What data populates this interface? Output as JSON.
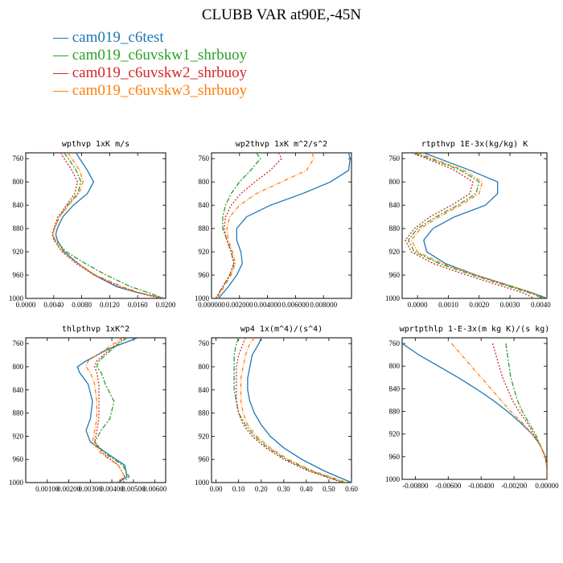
{
  "title": "CLUBB VAR at90E,-45N",
  "legend": [
    {
      "label": "cam019_c6test",
      "color": "#1f77b4",
      "dash": ""
    },
    {
      "label": "cam019_c6uvskw1_shrbuoy",
      "color": "#2ca02c",
      "dash": "6,2,2,2"
    },
    {
      "label": "cam019_c6uvskw2_shrbuoy",
      "color": "#d62728",
      "dash": "2,2"
    },
    {
      "label": "cam019_c6uvskw3_shrbuoy",
      "color": "#ff7f0e",
      "dash": "5,2,1,2"
    }
  ],
  "chart_data": [
    {
      "type": "line",
      "title": "wpthvp  1xK m/s",
      "xlim": [
        0,
        0.02
      ],
      "ylim": [
        1000,
        750
      ],
      "xticks": [
        0,
        0.004,
        0.008,
        0.012,
        0.016,
        0.02
      ],
      "xticklabels": [
        "0.0000",
        "0.0040",
        "0.0080",
        "0.0120",
        "0.0160",
        "0.0200"
      ],
      "yticks": [
        760,
        800,
        840,
        880,
        920,
        960,
        1000
      ],
      "series": [
        {
          "y": [
            750,
            760,
            780,
            800,
            820,
            840,
            860,
            880,
            890,
            900,
            920,
            940,
            960,
            980,
            990,
            1000
          ],
          "x": [
            0.0072,
            0.0077,
            0.0088,
            0.0097,
            0.0088,
            0.0068,
            0.0053,
            0.0045,
            0.0043,
            0.0045,
            0.0055,
            0.0075,
            0.0098,
            0.013,
            0.016,
            0.0198
          ]
        },
        {
          "y": [
            750,
            760,
            780,
            800,
            820,
            840,
            860,
            880,
            890,
            900,
            920,
            940,
            960,
            980,
            990,
            1000
          ],
          "x": [
            0.0055,
            0.0061,
            0.0072,
            0.0079,
            0.0074,
            0.006,
            0.0048,
            0.0041,
            0.0039,
            0.0042,
            0.0058,
            0.0085,
            0.0115,
            0.015,
            0.0175,
            0.0198
          ]
        },
        {
          "y": [
            750,
            760,
            780,
            800,
            820,
            840,
            860,
            880,
            890,
            900,
            920,
            940,
            960,
            980,
            990,
            1000
          ],
          "x": [
            0.005,
            0.0055,
            0.0066,
            0.0074,
            0.007,
            0.0058,
            0.0046,
            0.004,
            0.0038,
            0.004,
            0.0052,
            0.0072,
            0.0098,
            0.0135,
            0.016,
            0.0192
          ]
        },
        {
          "y": [
            750,
            760,
            780,
            800,
            820,
            840,
            860,
            880,
            890,
            900,
            920,
            940,
            960,
            980,
            990,
            1000
          ],
          "x": [
            0.006,
            0.0066,
            0.0077,
            0.0082,
            0.0076,
            0.0061,
            0.0048,
            0.0041,
            0.0039,
            0.0041,
            0.0053,
            0.0074,
            0.01,
            0.0138,
            0.0163,
            0.0195
          ]
        }
      ]
    },
    {
      "type": "line",
      "title": "wp2thvp  1xK m^2/s^2",
      "xlim": [
        0,
        0.01
      ],
      "ylim": [
        1000,
        750
      ],
      "xticks": [
        0,
        0.002,
        0.004,
        0.006,
        0.008
      ],
      "xticklabels": [
        "0.000000",
        "0.002000",
        "0.004000",
        "0.006000",
        "0.008000"
      ],
      "yticks": [
        760,
        800,
        840,
        880,
        920,
        960,
        1000
      ],
      "series": [
        {
          "y": [
            750,
            760,
            780,
            800,
            820,
            840,
            860,
            880,
            900,
            920,
            940,
            960,
            980,
            1000
          ],
          "x": [
            0.0098,
            0.0099,
            0.0098,
            0.0085,
            0.0065,
            0.0042,
            0.0025,
            0.0018,
            0.0018,
            0.0021,
            0.0022,
            0.0018,
            0.0012,
            0.0005
          ]
        },
        {
          "y": [
            750,
            760,
            780,
            800,
            820,
            840,
            860,
            880,
            900,
            920,
            940,
            960,
            980,
            1000
          ],
          "x": [
            0.0032,
            0.0035,
            0.0028,
            0.002,
            0.0014,
            0.001,
            0.0008,
            0.0008,
            0.0011,
            0.0014,
            0.0016,
            0.0013,
            0.0008,
            0.0003
          ]
        },
        {
          "y": [
            750,
            760,
            780,
            800,
            820,
            840,
            860,
            880,
            900,
            920,
            940,
            960,
            980,
            1000
          ],
          "x": [
            0.0048,
            0.005,
            0.0042,
            0.0031,
            0.0021,
            0.0014,
            0.001,
            0.0009,
            0.0011,
            0.0014,
            0.0016,
            0.0013,
            0.0008,
            0.0003
          ]
        },
        {
          "y": [
            750,
            760,
            780,
            800,
            820,
            840,
            860,
            880,
            900,
            920,
            940,
            960,
            980,
            1000
          ],
          "x": [
            0.0072,
            0.0073,
            0.0068,
            0.005,
            0.0032,
            0.002,
            0.0013,
            0.0011,
            0.0012,
            0.0015,
            0.0017,
            0.0014,
            0.0009,
            0.0004
          ]
        }
      ]
    },
    {
      "type": "line",
      "title": "rtpthvp  1E-3x(kg/kg) K",
      "xlim": [
        -0.0005,
        0.0042
      ],
      "ylim": [
        1000,
        750
      ],
      "xticks": [
        0,
        0.001,
        0.002,
        0.003,
        0.004
      ],
      "xticklabels": [
        "0.0000",
        "0.0010",
        "0.0020",
        "0.0030",
        "0.0040"
      ],
      "yticks": [
        760,
        800,
        840,
        880,
        920,
        960,
        1000
      ],
      "series": [
        {
          "y": [
            750,
            760,
            780,
            800,
            820,
            840,
            860,
            880,
            900,
            920,
            940,
            960,
            980,
            990,
            1000
          ],
          "x": [
            0.0002,
            0.0007,
            0.0017,
            0.0026,
            0.0026,
            0.0022,
            0.0012,
            0.0005,
            0.0002,
            0.0003,
            0.0009,
            0.0019,
            0.0031,
            0.0037,
            0.0042
          ]
        },
        {
          "y": [
            750,
            760,
            780,
            800,
            820,
            840,
            860,
            880,
            900,
            920,
            940,
            960,
            980,
            990,
            1000
          ],
          "x": [
            -0.0001,
            0.0004,
            0.0014,
            0.002,
            0.0019,
            0.0013,
            0.0006,
            0.0,
            -0.0003,
            -0.0001,
            0.0007,
            0.0018,
            0.003,
            0.0036,
            0.0041
          ]
        },
        {
          "y": [
            750,
            760,
            780,
            800,
            820,
            840,
            860,
            880,
            900,
            920,
            940,
            960,
            980,
            990,
            1000
          ],
          "x": [
            -0.0002,
            0.0003,
            0.0012,
            0.0018,
            0.0017,
            0.0011,
            0.0004,
            -0.0001,
            -0.0004,
            -0.0002,
            0.0005,
            0.0016,
            0.0028,
            0.0034,
            0.0038
          ]
        },
        {
          "y": [
            750,
            760,
            780,
            800,
            820,
            840,
            860,
            880,
            900,
            920,
            940,
            960,
            980,
            990,
            1000
          ],
          "x": [
            0.0,
            0.0005,
            0.0015,
            0.0021,
            0.002,
            0.0014,
            0.0007,
            0.0001,
            -0.0002,
            0.0,
            0.0008,
            0.0019,
            0.0031,
            0.0037,
            0.0041
          ]
        }
      ]
    },
    {
      "type": "line",
      "title": "thlpthvp  1xK^2",
      "xlim": [
        0,
        0.0065
      ],
      "ylim": [
        1000,
        750
      ],
      "xticks": [
        0.001,
        0.002,
        0.003,
        0.004,
        0.005,
        0.006
      ],
      "xticklabels": [
        "0.00100",
        "0.00200",
        "0.00300",
        "0.00400",
        "0.00500",
        "0.00600"
      ],
      "yticks": [
        760,
        800,
        840,
        880,
        920,
        960,
        1000
      ],
      "series": [
        {
          "y": [
            750,
            770,
            790,
            800,
            810,
            830,
            860,
            890,
            910,
            930,
            950,
            970,
            990,
            1000
          ],
          "x": [
            0.0052,
            0.0038,
            0.0028,
            0.0024,
            0.0025,
            0.0029,
            0.0031,
            0.003,
            0.0028,
            0.003,
            0.0038,
            0.0046,
            0.0047,
            0.0043
          ]
        },
        {
          "y": [
            750,
            770,
            790,
            800,
            810,
            830,
            860,
            890,
            910,
            930,
            950,
            970,
            990,
            1000
          ],
          "x": [
            0.0047,
            0.004,
            0.0034,
            0.0033,
            0.0035,
            0.0037,
            0.0041,
            0.0039,
            0.0035,
            0.0032,
            0.0037,
            0.0045,
            0.0048,
            0.0045
          ]
        },
        {
          "y": [
            750,
            770,
            790,
            800,
            810,
            830,
            860,
            890,
            910,
            930,
            950,
            970,
            990,
            1000
          ],
          "x": [
            0.0046,
            0.0039,
            0.0033,
            0.0032,
            0.0033,
            0.0034,
            0.0034,
            0.0034,
            0.0033,
            0.0032,
            0.0036,
            0.0043,
            0.0046,
            0.0043
          ]
        },
        {
          "y": [
            750,
            770,
            790,
            800,
            810,
            830,
            860,
            890,
            910,
            930,
            950,
            970,
            990,
            1000
          ],
          "x": [
            0.0045,
            0.0037,
            0.0029,
            0.0028,
            0.003,
            0.0032,
            0.0033,
            0.0033,
            0.0032,
            0.0031,
            0.0035,
            0.0043,
            0.0046,
            0.0042
          ]
        }
      ]
    },
    {
      "type": "line",
      "title": "wp4  1x(m^4)/(s^4)",
      "xlim": [
        -0.02,
        0.6
      ],
      "ylim": [
        1000,
        750
      ],
      "xticks": [
        0,
        0.1,
        0.2,
        0.3,
        0.4,
        0.5,
        0.6
      ],
      "xticklabels": [
        "0.00",
        "0.10",
        "0.20",
        "0.30",
        "0.40",
        "0.50",
        "0.60"
      ],
      "yticks": [
        760,
        800,
        840,
        880,
        920,
        960,
        1000
      ],
      "series": [
        {
          "y": [
            750,
            760,
            780,
            800,
            820,
            840,
            860,
            880,
            900,
            920,
            940,
            960,
            980,
            1000
          ],
          "x": [
            0.2,
            0.19,
            0.16,
            0.15,
            0.14,
            0.14,
            0.15,
            0.17,
            0.2,
            0.24,
            0.3,
            0.38,
            0.48,
            0.6
          ]
        },
        {
          "y": [
            750,
            760,
            780,
            800,
            820,
            840,
            860,
            880,
            900,
            920,
            940,
            960,
            980,
            1000
          ],
          "x": [
            0.1,
            0.09,
            0.08,
            0.08,
            0.08,
            0.08,
            0.09,
            0.1,
            0.13,
            0.17,
            0.23,
            0.31,
            0.42,
            0.57
          ]
        },
        {
          "y": [
            750,
            760,
            780,
            800,
            820,
            840,
            860,
            880,
            900,
            920,
            940,
            960,
            980,
            1000
          ],
          "x": [
            0.13,
            0.12,
            0.1,
            0.09,
            0.09,
            0.09,
            0.09,
            0.1,
            0.12,
            0.16,
            0.22,
            0.3,
            0.41,
            0.56
          ]
        },
        {
          "y": [
            750,
            760,
            780,
            800,
            820,
            840,
            860,
            880,
            900,
            920,
            940,
            960,
            980,
            1000
          ],
          "x": [
            0.17,
            0.15,
            0.13,
            0.12,
            0.11,
            0.11,
            0.11,
            0.12,
            0.14,
            0.18,
            0.24,
            0.32,
            0.43,
            0.58
          ]
        }
      ]
    },
    {
      "type": "line",
      "title": "wprtpthlp  1-E-3x(m kg K)/(s kg)",
      "xlim": [
        -0.0088,
        0.0
      ],
      "ylim": [
        1000,
        750
      ],
      "xticks": [
        -0.008,
        -0.006,
        -0.004,
        -0.002,
        0.0
      ],
      "xticklabels": [
        "-0.00800",
        "-0.00600",
        "-0.00400",
        "-0.00200",
        "0.00000"
      ],
      "yticks": [
        760,
        800,
        840,
        880,
        920,
        960,
        1000
      ],
      "series": [
        {
          "y": [
            760,
            780,
            800,
            820,
            840,
            860,
            880,
            900,
            920,
            940,
            960,
            980,
            1000
          ],
          "x": [
            -0.0088,
            -0.0078,
            -0.0066,
            -0.0054,
            -0.0043,
            -0.0033,
            -0.0024,
            -0.0016,
            -0.0009,
            -0.0004,
            -0.0001,
            0.0,
            0.0
          ]
        },
        {
          "y": [
            760,
            780,
            800,
            820,
            840,
            860,
            880,
            900,
            920,
            940,
            960,
            980,
            1000
          ],
          "x": [
            -0.0025,
            -0.0024,
            -0.0023,
            -0.0022,
            -0.002,
            -0.0018,
            -0.0015,
            -0.0011,
            -0.0007,
            -0.0004,
            -0.0001,
            0.0,
            0.0
          ]
        },
        {
          "y": [
            760,
            780,
            800,
            820,
            840,
            860,
            880,
            900,
            920,
            940,
            960,
            980,
            1000
          ],
          "x": [
            -0.0033,
            -0.0031,
            -0.0029,
            -0.0027,
            -0.0024,
            -0.0021,
            -0.0017,
            -0.0012,
            -0.0008,
            -0.0004,
            -0.0001,
            0.0,
            0.0
          ]
        },
        {
          "y": [
            760,
            780,
            800,
            820,
            840,
            860,
            880,
            900,
            920,
            940,
            960,
            980,
            1000
          ],
          "x": [
            -0.0058,
            -0.0052,
            -0.0046,
            -0.004,
            -0.0034,
            -0.0028,
            -0.0022,
            -0.0015,
            -0.0009,
            -0.0004,
            -0.0001,
            0.0,
            0.0
          ]
        }
      ]
    }
  ]
}
